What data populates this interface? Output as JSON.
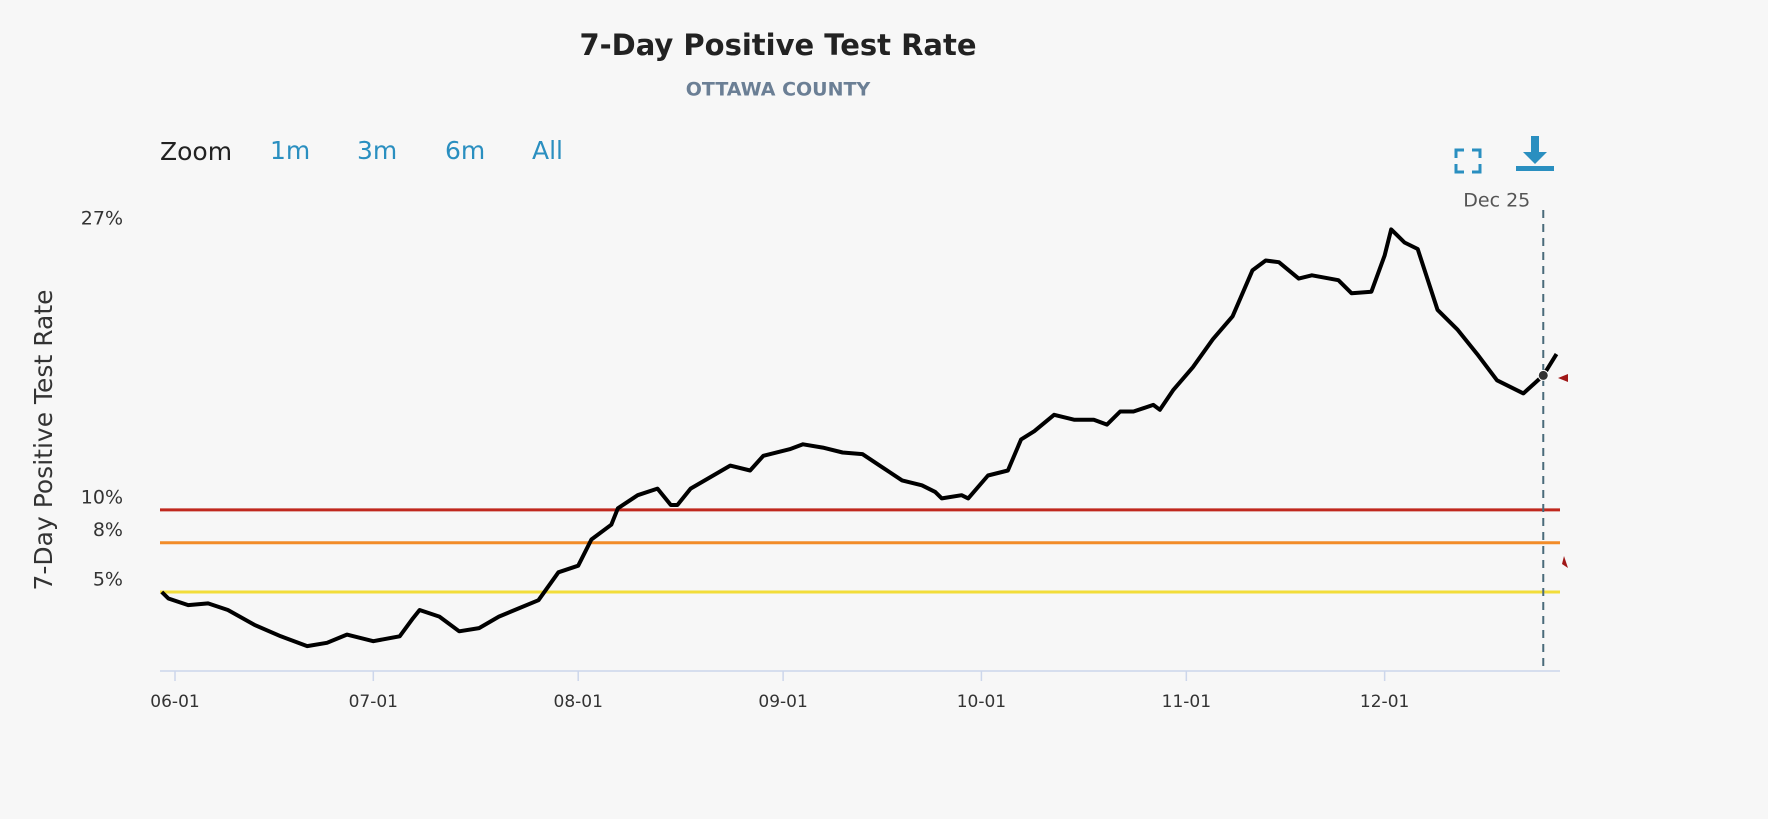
{
  "chart_data": {
    "type": "line",
    "title": "7-Day Positive Test Rate",
    "subtitle": "OTTAWA COUNTY",
    "ylabel": "7-Day Positive Test Rate",
    "zoom_label": "Zoom",
    "zoom_options": [
      "1m",
      "3m",
      "6m",
      "All"
    ],
    "x": [
      "05-30",
      "05-31",
      "06-03",
      "06-06",
      "06-09",
      "06-13",
      "06-17",
      "06-21",
      "06-24",
      "06-27",
      "07-01",
      "07-05",
      "07-07",
      "07-08",
      "07-11",
      "07-14",
      "07-17",
      "07-20",
      "07-23",
      "07-26",
      "07-29",
      "08-01",
      "08-03",
      "08-06",
      "08-07",
      "08-10",
      "08-13",
      "08-15",
      "08-16",
      "08-18",
      "08-21",
      "08-24",
      "08-27",
      "08-29",
      "09-02",
      "09-04",
      "09-07",
      "09-10",
      "09-13",
      "09-16",
      "09-19",
      "09-22",
      "09-24",
      "09-25",
      "09-28",
      "09-29",
      "10-02",
      "10-05",
      "10-07",
      "10-09",
      "10-12",
      "10-15",
      "10-18",
      "10-20",
      "10-22",
      "10-24",
      "10-27",
      "10-28",
      "10-30",
      "11-02",
      "11-05",
      "11-08",
      "11-11",
      "11-13",
      "11-15",
      "11-18",
      "11-20",
      "11-24",
      "11-26",
      "11-29",
      "12-01",
      "12-02",
      "12-04",
      "12-06",
      "12-09",
      "12-12",
      "12-15",
      "12-18",
      "12-22",
      "12-25",
      "12-27"
    ],
    "series": [
      {
        "name": "7-Day Positive Test Rate",
        "color": "#000000",
        "values": [
          5.0,
          4.6,
          4.2,
          4.3,
          3.9,
          3.0,
          2.3,
          1.7,
          1.9,
          2.4,
          2.0,
          2.3,
          3.4,
          3.9,
          3.5,
          2.6,
          2.8,
          3.5,
          4.0,
          4.5,
          6.2,
          6.6,
          8.2,
          9.1,
          10.1,
          10.9,
          11.3,
          10.3,
          10.3,
          11.3,
          12.0,
          12.7,
          12.4,
          13.3,
          13.7,
          14.0,
          13.8,
          13.5,
          13.4,
          12.6,
          11.8,
          11.5,
          11.1,
          10.7,
          10.9,
          10.7,
          12.1,
          12.4,
          14.3,
          14.8,
          15.8,
          15.5,
          15.5,
          15.2,
          16.0,
          16.0,
          16.4,
          16.1,
          17.3,
          18.7,
          20.4,
          21.8,
          24.6,
          25.2,
          25.1,
          24.1,
          24.3,
          24.0,
          23.2,
          23.3,
          25.5,
          27.1,
          26.3,
          25.9,
          22.2,
          21.0,
          19.5,
          17.9,
          17.1,
          18.2,
          19.5
        ]
      }
    ],
    "xticks": [
      "06-01",
      "07-01",
      "08-01",
      "09-01",
      "10-01",
      "11-01",
      "12-01"
    ],
    "ylim": [
      0,
      27
    ],
    "yticks": [
      {
        "value": 5,
        "label": "5%"
      },
      {
        "value": 8,
        "label": "8%"
      },
      {
        "value": 10,
        "label": "10%"
      },
      {
        "value": 27,
        "label": "27%"
      }
    ],
    "grid": false,
    "threshold_lines": [
      {
        "value": 10,
        "color": "#c0281e"
      },
      {
        "value": 8,
        "color": "#f28c28"
      },
      {
        "value": 5,
        "color": "#f2dd3a"
      }
    ],
    "annotation": {
      "x": "12-25",
      "label": "Dec 25"
    }
  }
}
